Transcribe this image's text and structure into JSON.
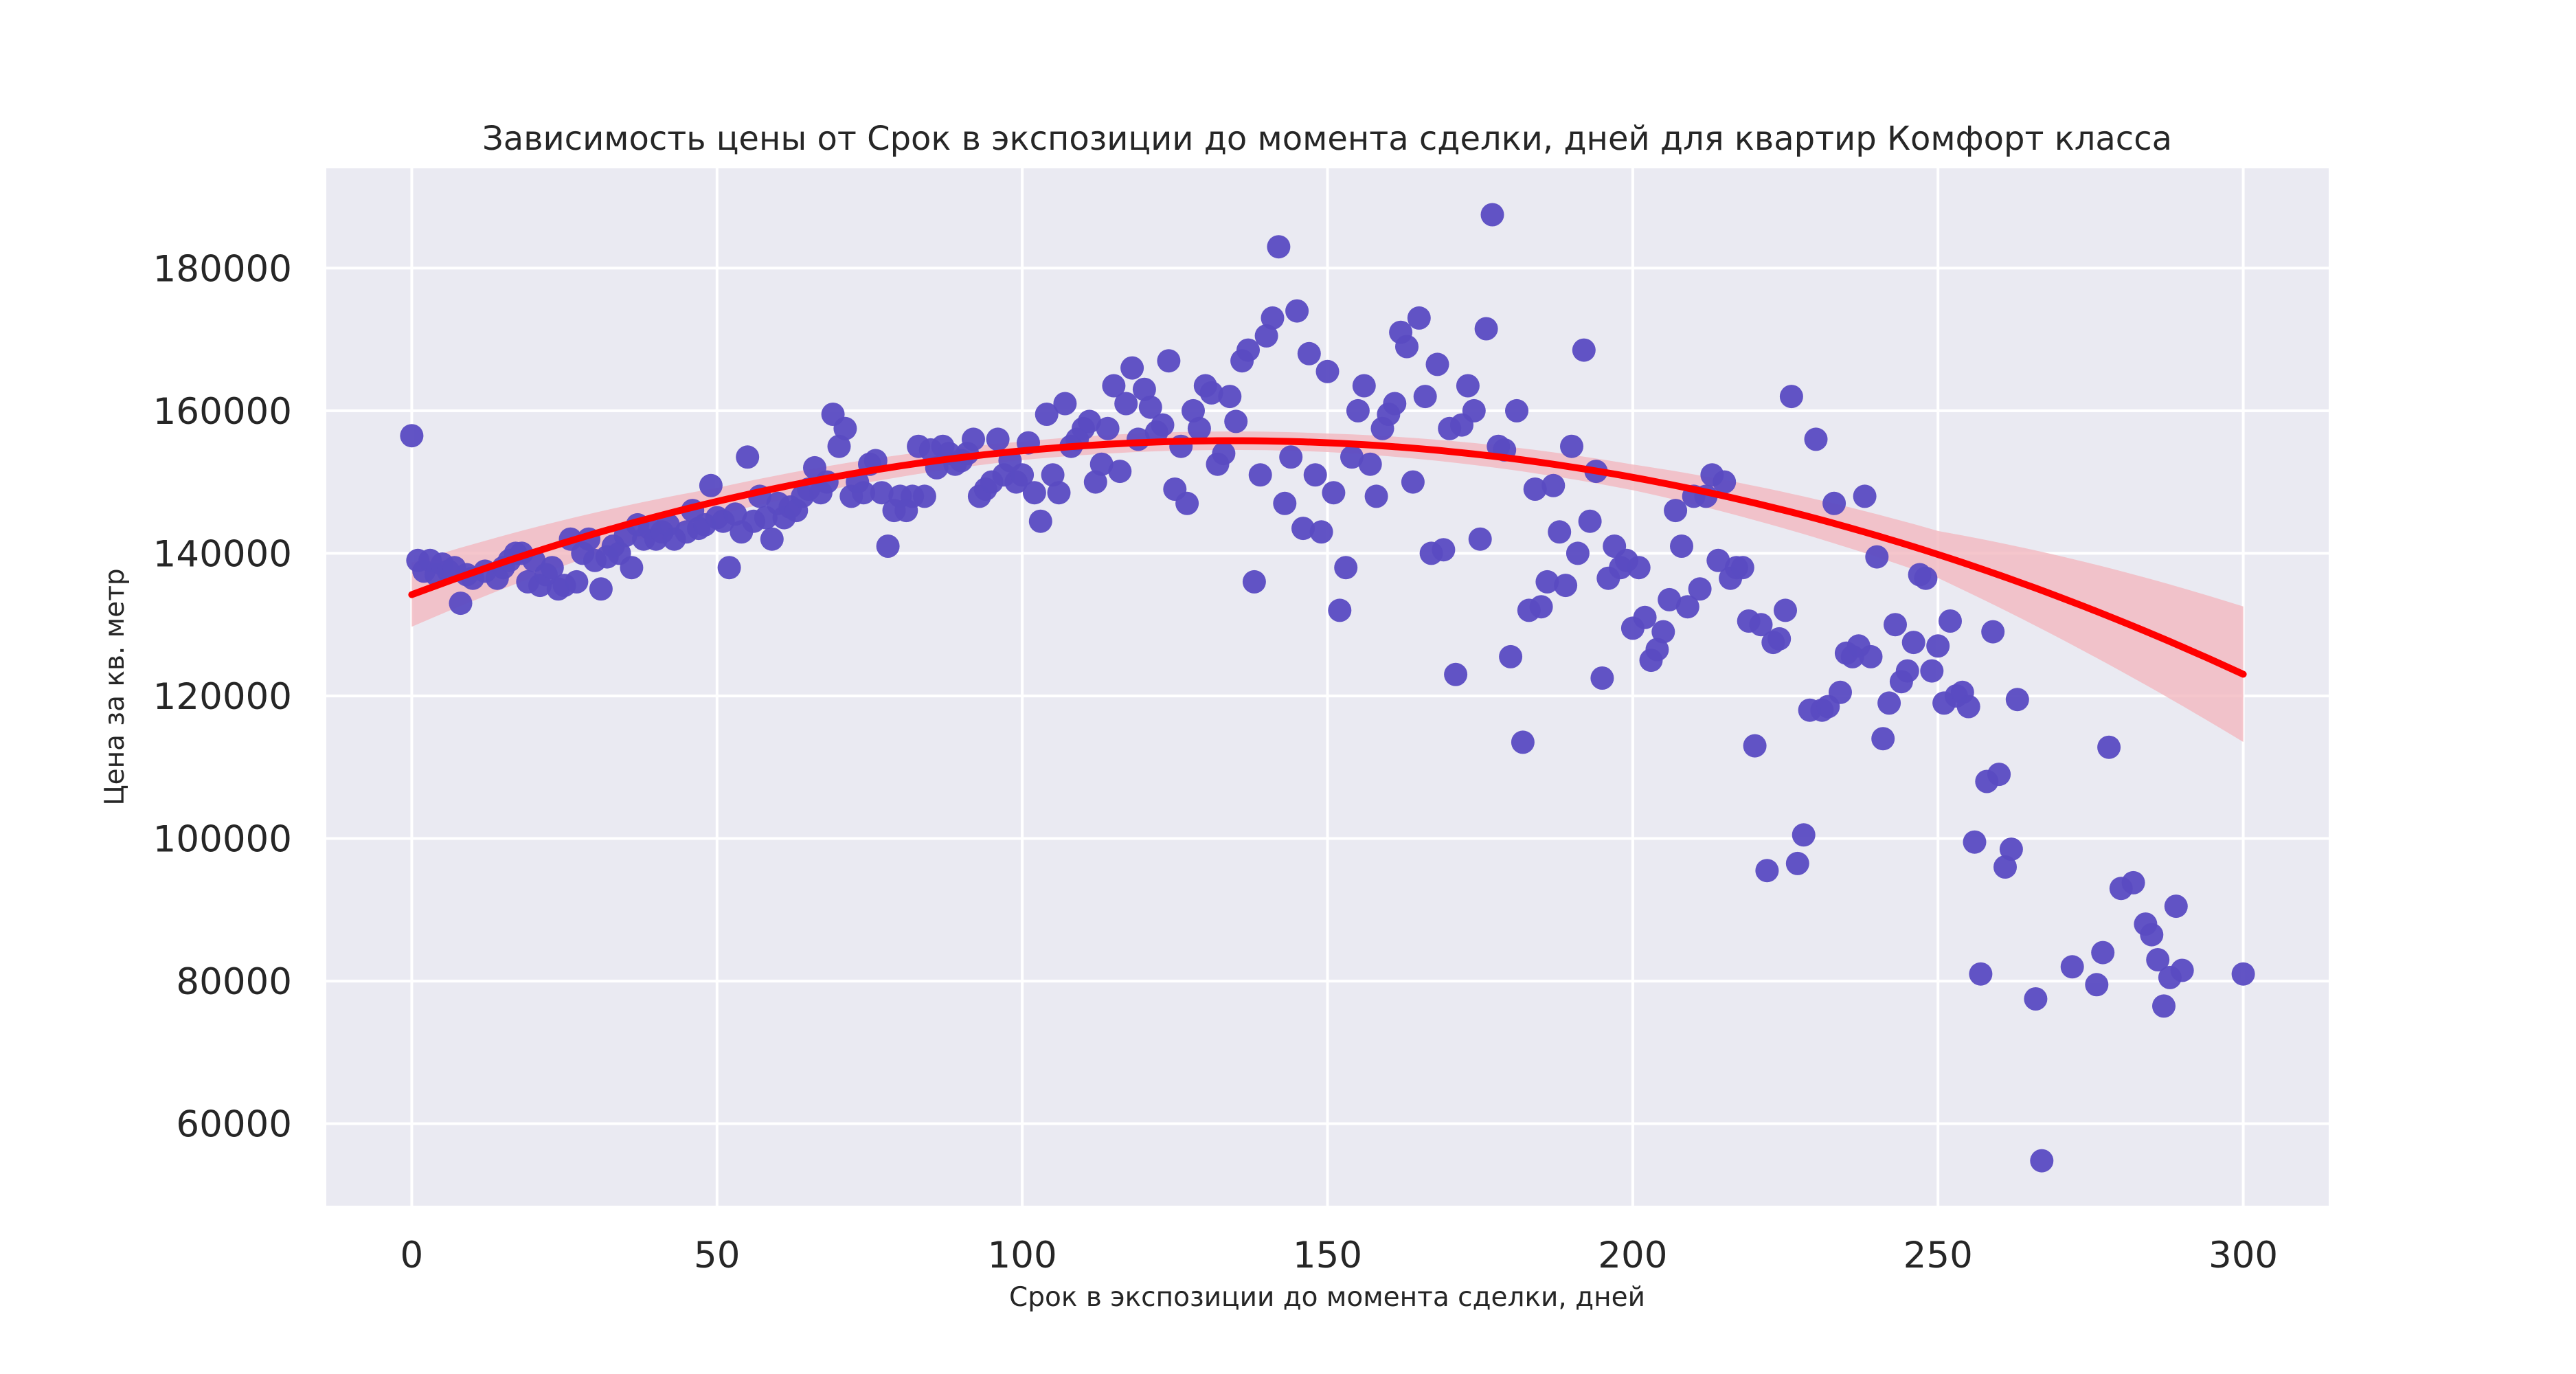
{
  "chart_data": {
    "type": "scatter",
    "title": "Зависимость цены от Срок в экспозиции до момента сделки, дней для квартир Комфорт класса",
    "xlabel": "Срок в экспозиции до момента сделки, дней",
    "ylabel": "Цена за кв. метр",
    "xlim": [
      -14,
      314
    ],
    "ylim": [
      48500,
      194000
    ],
    "xticks": [
      0,
      50,
      100,
      150,
      200,
      250,
      300
    ],
    "yticks": [
      60000,
      80000,
      100000,
      120000,
      140000,
      160000,
      180000
    ],
    "grid": true,
    "colors": {
      "background": "#eaeaf2",
      "grid": "#ffffff",
      "points": "#5a4bc2",
      "fit_line": "#ff0000",
      "confidence_band": "#f2b8bf"
    },
    "points": [
      [
        0,
        156500
      ],
      [
        1,
        139000
      ],
      [
        2,
        137500
      ],
      [
        3,
        139000
      ],
      [
        4,
        137000
      ],
      [
        5,
        138500
      ],
      [
        6,
        137500
      ],
      [
        7,
        138000
      ],
      [
        8,
        133000
      ],
      [
        9,
        137000
      ],
      [
        10,
        136500
      ],
      [
        12,
        137500
      ],
      [
        14,
        136500
      ],
      [
        15,
        138000
      ],
      [
        16,
        139000
      ],
      [
        17,
        140000
      ],
      [
        18,
        140000
      ],
      [
        19,
        136000
      ],
      [
        20,
        139000
      ],
      [
        21,
        135500
      ],
      [
        22,
        137000
      ],
      [
        23,
        138000
      ],
      [
        24,
        135000
      ],
      [
        25,
        135500
      ],
      [
        26,
        142000
      ],
      [
        27,
        136000
      ],
      [
        28,
        140000
      ],
      [
        29,
        142000
      ],
      [
        30,
        139000
      ],
      [
        31,
        135000
      ],
      [
        32,
        139500
      ],
      [
        33,
        141000
      ],
      [
        34,
        140000
      ],
      [
        35,
        142500
      ],
      [
        36,
        138000
      ],
      [
        37,
        144000
      ],
      [
        38,
        142000
      ],
      [
        39,
        143500
      ],
      [
        40,
        142000
      ],
      [
        41,
        143000
      ],
      [
        42,
        144000
      ],
      [
        43,
        142000
      ],
      [
        45,
        143000
      ],
      [
        46,
        146000
      ],
      [
        47,
        143500
      ],
      [
        48,
        144000
      ],
      [
        49,
        149500
      ],
      [
        50,
        145000
      ],
      [
        51,
        144500
      ],
      [
        52,
        138000
      ],
      [
        53,
        145500
      ],
      [
        54,
        143000
      ],
      [
        55,
        153500
      ],
      [
        56,
        144500
      ],
      [
        57,
        148000
      ],
      [
        58,
        145000
      ],
      [
        59,
        142000
      ],
      [
        60,
        147000
      ],
      [
        61,
        145000
      ],
      [
        62,
        146500
      ],
      [
        63,
        146000
      ],
      [
        64,
        148000
      ],
      [
        65,
        149000
      ],
      [
        66,
        152000
      ],
      [
        67,
        148500
      ],
      [
        68,
        150000
      ],
      [
        69,
        159500
      ],
      [
        70,
        155000
      ],
      [
        71,
        157500
      ],
      [
        72,
        148000
      ],
      [
        73,
        150000
      ],
      [
        74,
        148500
      ],
      [
        75,
        152500
      ],
      [
        76,
        153000
      ],
      [
        77,
        148500
      ],
      [
        78,
        141000
      ],
      [
        79,
        146000
      ],
      [
        80,
        148000
      ],
      [
        81,
        146000
      ],
      [
        82,
        148000
      ],
      [
        83,
        155000
      ],
      [
        84,
        148000
      ],
      [
        85,
        154500
      ],
      [
        86,
        152000
      ],
      [
        87,
        155000
      ],
      [
        88,
        154000
      ],
      [
        89,
        152500
      ],
      [
        90,
        153000
      ],
      [
        91,
        154000
      ],
      [
        92,
        156000
      ],
      [
        93,
        148000
      ],
      [
        94,
        149000
      ],
      [
        95,
        150000
      ],
      [
        96,
        156000
      ],
      [
        97,
        151000
      ],
      [
        98,
        153000
      ],
      [
        99,
        150000
      ],
      [
        100,
        151000
      ],
      [
        101,
        155500
      ],
      [
        102,
        148500
      ],
      [
        103,
        144500
      ],
      [
        104,
        159500
      ],
      [
        105,
        151000
      ],
      [
        106,
        148500
      ],
      [
        107,
        161000
      ],
      [
        108,
        155000
      ],
      [
        109,
        156000
      ],
      [
        110,
        157500
      ],
      [
        111,
        158500
      ],
      [
        112,
        150000
      ],
      [
        113,
        152500
      ],
      [
        114,
        157500
      ],
      [
        115,
        163500
      ],
      [
        116,
        151500
      ],
      [
        117,
        161000
      ],
      [
        118,
        166000
      ],
      [
        119,
        156000
      ],
      [
        120,
        163000
      ],
      [
        121,
        160500
      ],
      [
        122,
        157000
      ],
      [
        123,
        158000
      ],
      [
        124,
        167000
      ],
      [
        125,
        149000
      ],
      [
        126,
        155000
      ],
      [
        127,
        147000
      ],
      [
        128,
        160000
      ],
      [
        129,
        157500
      ],
      [
        130,
        163500
      ],
      [
        131,
        162500
      ],
      [
        132,
        152500
      ],
      [
        133,
        154000
      ],
      [
        134,
        162000
      ],
      [
        135,
        158500
      ],
      [
        136,
        167000
      ],
      [
        137,
        168500
      ],
      [
        138,
        136000
      ],
      [
        139,
        151000
      ],
      [
        140,
        170500
      ],
      [
        141,
        173000
      ],
      [
        142,
        183000
      ],
      [
        143,
        147000
      ],
      [
        144,
        153500
      ],
      [
        145,
        174000
      ],
      [
        146,
        143500
      ],
      [
        147,
        168000
      ],
      [
        148,
        151000
      ],
      [
        149,
        143000
      ],
      [
        150,
        165500
      ],
      [
        151,
        148500
      ],
      [
        152,
        132000
      ],
      [
        153,
        138000
      ],
      [
        154,
        153500
      ],
      [
        155,
        160000
      ],
      [
        156,
        163500
      ],
      [
        157,
        152500
      ],
      [
        158,
        148000
      ],
      [
        159,
        157500
      ],
      [
        160,
        159500
      ],
      [
        161,
        161000
      ],
      [
        162,
        171000
      ],
      [
        163,
        169000
      ],
      [
        164,
        150000
      ],
      [
        165,
        173000
      ],
      [
        166,
        162000
      ],
      [
        167,
        140000
      ],
      [
        168,
        166500
      ],
      [
        169,
        140500
      ],
      [
        170,
        157500
      ],
      [
        171,
        123000
      ],
      [
        172,
        158000
      ],
      [
        173,
        163500
      ],
      [
        174,
        160000
      ],
      [
        175,
        142000
      ],
      [
        176,
        171500
      ],
      [
        177,
        187500
      ],
      [
        178,
        155000
      ],
      [
        179,
        154500
      ],
      [
        180,
        125500
      ],
      [
        181,
        160000
      ],
      [
        182,
        113500
      ],
      [
        183,
        132000
      ],
      [
        184,
        149000
      ],
      [
        185,
        132500
      ],
      [
        186,
        136000
      ],
      [
        187,
        149500
      ],
      [
        188,
        143000
      ],
      [
        189,
        135500
      ],
      [
        190,
        155000
      ],
      [
        191,
        140000
      ],
      [
        192,
        168500
      ],
      [
        193,
        144500
      ],
      [
        194,
        151500
      ],
      [
        195,
        122500
      ],
      [
        196,
        136500
      ],
      [
        197,
        141000
      ],
      [
        198,
        138000
      ],
      [
        199,
        139000
      ],
      [
        200,
        129500
      ],
      [
        201,
        138000
      ],
      [
        202,
        131000
      ],
      [
        203,
        125000
      ],
      [
        204,
        126500
      ],
      [
        205,
        129000
      ],
      [
        206,
        133500
      ],
      [
        207,
        146000
      ],
      [
        208,
        141000
      ],
      [
        209,
        132500
      ],
      [
        210,
        148000
      ],
      [
        211,
        135000
      ],
      [
        212,
        148000
      ],
      [
        213,
        151000
      ],
      [
        214,
        139000
      ],
      [
        215,
        150000
      ],
      [
        216,
        136500
      ],
      [
        217,
        138000
      ],
      [
        218,
        138000
      ],
      [
        219,
        130500
      ],
      [
        220,
        113000
      ],
      [
        221,
        130000
      ],
      [
        222,
        95500
      ],
      [
        223,
        127500
      ],
      [
        224,
        128000
      ],
      [
        225,
        132000
      ],
      [
        226,
        162000
      ],
      [
        227,
        96500
      ],
      [
        228,
        100500
      ],
      [
        229,
        118000
      ],
      [
        230,
        156000
      ],
      [
        231,
        118000
      ],
      [
        232,
        118500
      ],
      [
        233,
        147000
      ],
      [
        234,
        120500
      ],
      [
        235,
        126000
      ],
      [
        236,
        125500
      ],
      [
        237,
        127000
      ],
      [
        238,
        148000
      ],
      [
        239,
        125500
      ],
      [
        240,
        139500
      ],
      [
        241,
        114000
      ],
      [
        242,
        119000
      ],
      [
        243,
        130000
      ],
      [
        244,
        122000
      ],
      [
        245,
        123500
      ],
      [
        246,
        127500
      ],
      [
        247,
        137000
      ],
      [
        248,
        136500
      ],
      [
        249,
        123500
      ],
      [
        250,
        127000
      ],
      [
        251,
        119000
      ],
      [
        252,
        130500
      ],
      [
        253,
        120000
      ],
      [
        254,
        120500
      ],
      [
        255,
        118500
      ],
      [
        256,
        99500
      ],
      [
        257,
        81000
      ],
      [
        258,
        108000
      ],
      [
        259,
        129000
      ],
      [
        260,
        109000
      ],
      [
        261,
        96000
      ],
      [
        262,
        98500
      ],
      [
        263,
        119500
      ],
      [
        266,
        77500
      ],
      [
        267,
        54800
      ],
      [
        272,
        82000
      ],
      [
        276,
        79500
      ],
      [
        277,
        84000
      ],
      [
        278,
        112800
      ],
      [
        280,
        93000
      ],
      [
        282,
        93800
      ],
      [
        284,
        88000
      ],
      [
        285,
        86500
      ],
      [
        286,
        83000
      ],
      [
        287,
        76500
      ],
      [
        288,
        80500
      ],
      [
        289,
        90500
      ],
      [
        290,
        81500
      ],
      [
        300,
        81000
      ]
    ],
    "fit": {
      "model": "quadratic",
      "coefficients": [
        134200,
        321.3,
        -1.195
      ],
      "x_range": [
        0,
        300
      ],
      "band_halfwidth_at_x": [
        [
          0,
          4500
        ],
        [
          50,
          1900
        ],
        [
          100,
          1300
        ],
        [
          150,
          1300
        ],
        [
          200,
          1800
        ],
        [
          250,
          3300
        ],
        [
          300,
          9500
        ]
      ]
    }
  }
}
